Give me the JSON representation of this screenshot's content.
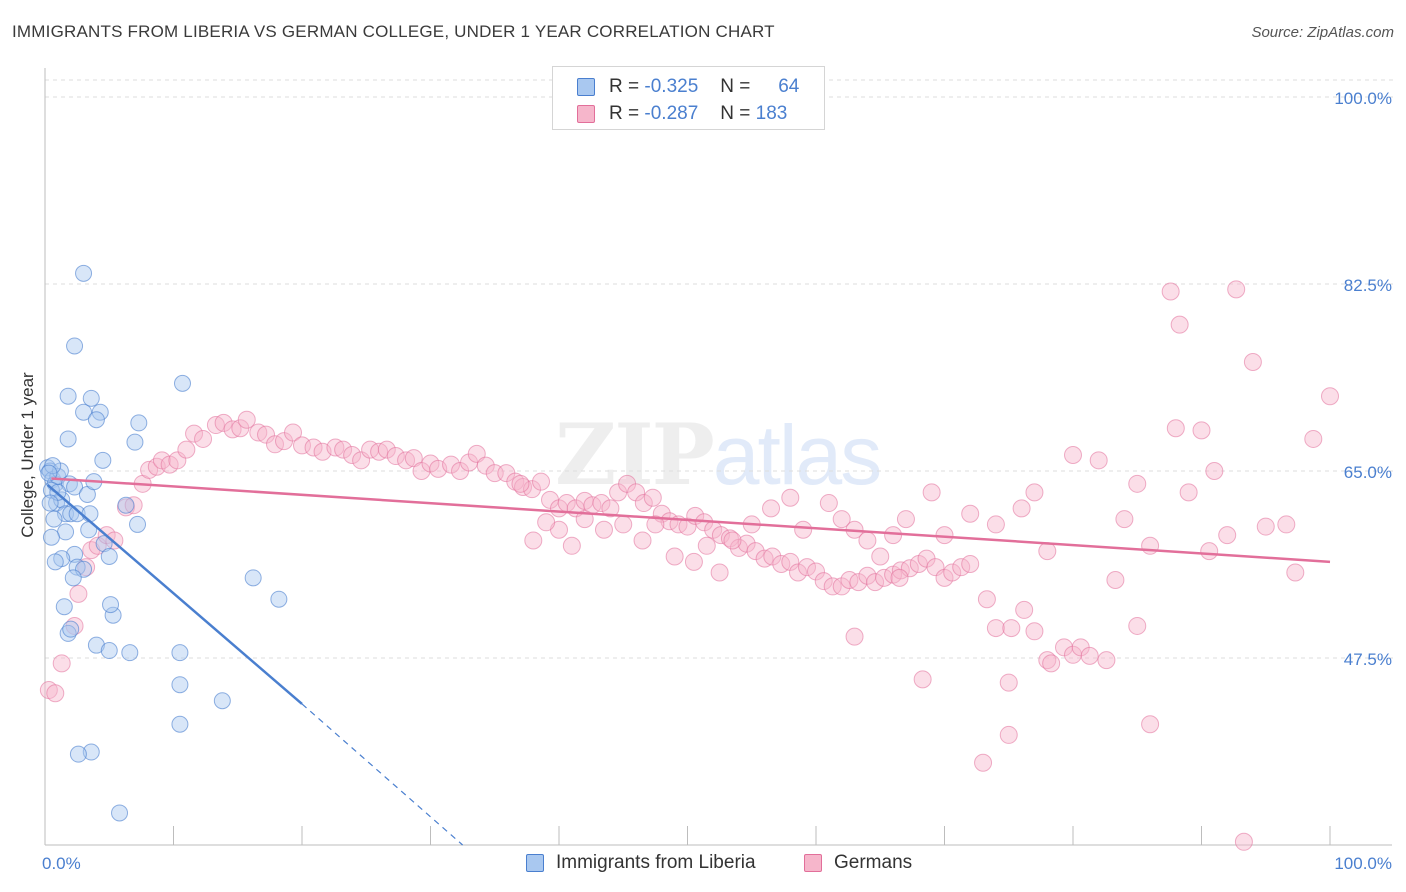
{
  "title": "IMMIGRANTS FROM LIBERIA VS GERMAN COLLEGE, UNDER 1 YEAR CORRELATION CHART",
  "source": "Source: ZipAtlas.com",
  "watermark": {
    "zip": "ZIP",
    "atlas": "atlas"
  },
  "colors": {
    "blue": "#4a7fcf",
    "blue_fill": "#a9c8f0",
    "pink": "#e26f9a",
    "pink_fill": "#f6b6cb",
    "grid": "#dddddd",
    "axis_text": "#4a7fcf"
  },
  "legend": {
    "series1": {
      "r_label": "R =",
      "r_value": "-0.325",
      "n_label": "N =",
      "n_value": "64",
      "name": "Immigrants from Liberia"
    },
    "series2": {
      "r_label": "R =",
      "r_value": "-0.287",
      "n_label": "N =",
      "n_value": "183",
      "name": "Germans"
    }
  },
  "chart_data": {
    "type": "scatter",
    "title": "IMMIGRANTS FROM LIBERIA VS GERMAN COLLEGE, UNDER 1 YEAR CORRELATION CHART",
    "xlabel": "",
    "ylabel": "College, Under 1 year",
    "xlim": [
      0,
      100
    ],
    "ylim": [
      30,
      101
    ],
    "x_tick_labels": [
      "0.0%",
      "100.0%"
    ],
    "y_ticks": [
      47.5,
      65.0,
      82.5,
      100.0
    ],
    "y_tick_labels": [
      "47.5%",
      "65.0%",
      "82.5%",
      "100.0%"
    ],
    "grid": true,
    "series": [
      {
        "name": "Immigrants from Liberia",
        "color": "#4a7fcf",
        "trend": {
          "x0": 0.2,
          "y0": 63.7,
          "x1": 20,
          "y1": 43.2,
          "dash_to_x": 32.5,
          "dash_to_y": 30.0
        },
        "points": [
          [
            0.2,
            65.3
          ],
          [
            0.4,
            65.0
          ],
          [
            0.6,
            64.2
          ],
          [
            0.8,
            63.8
          ],
          [
            1.0,
            64.5
          ],
          [
            0.5,
            63.2
          ],
          [
            0.9,
            62.0
          ],
          [
            1.3,
            62.3
          ],
          [
            1.6,
            61.0
          ],
          [
            0.7,
            60.5
          ],
          [
            1.6,
            59.3
          ],
          [
            0.5,
            58.8
          ],
          [
            1.9,
            63.8
          ],
          [
            1.2,
            65.0
          ],
          [
            2.0,
            61.0
          ],
          [
            2.5,
            61.0
          ],
          [
            2.3,
            63.5
          ],
          [
            3.3,
            62.8
          ],
          [
            3.5,
            61.0
          ],
          [
            3.4,
            59.5
          ],
          [
            2.3,
            57.2
          ],
          [
            1.3,
            56.8
          ],
          [
            2.5,
            56.0
          ],
          [
            3.0,
            55.8
          ],
          [
            2.2,
            55.0
          ],
          [
            0.8,
            56.5
          ],
          [
            4.6,
            58.2
          ],
          [
            5.0,
            57.0
          ],
          [
            1.5,
            52.3
          ],
          [
            5.3,
            51.5
          ],
          [
            1.8,
            49.8
          ],
          [
            4.0,
            48.7
          ],
          [
            5.0,
            48.2
          ],
          [
            6.6,
            48.0
          ],
          [
            5.1,
            52.5
          ],
          [
            2.0,
            50.2
          ],
          [
            7.2,
            60.0
          ],
          [
            6.3,
            61.8
          ],
          [
            7.3,
            69.5
          ],
          [
            7.0,
            67.7
          ],
          [
            4.5,
            66.0
          ],
          [
            3.0,
            70.5
          ],
          [
            4.3,
            70.5
          ],
          [
            4.0,
            69.8
          ],
          [
            3.6,
            71.8
          ],
          [
            1.8,
            68.0
          ],
          [
            1.8,
            72.0
          ],
          [
            2.3,
            76.7
          ],
          [
            3.0,
            83.5
          ],
          [
            10.7,
            73.2
          ],
          [
            16.2,
            55.0
          ],
          [
            18.2,
            53.0
          ],
          [
            10.5,
            48.0
          ],
          [
            10.5,
            45.0
          ],
          [
            13.8,
            43.5
          ],
          [
            10.5,
            41.3
          ],
          [
            3.6,
            38.7
          ],
          [
            2.6,
            38.5
          ],
          [
            5.8,
            33.0
          ],
          [
            0.6,
            65.5
          ],
          [
            1.0,
            63.0
          ],
          [
            0.4,
            62.0
          ],
          [
            3.8,
            64.0
          ],
          [
            0.3,
            64.8
          ]
        ]
      },
      {
        "name": "Germans",
        "color": "#e26f9a",
        "trend": {
          "x0": 0.5,
          "y0": 64.3,
          "x1": 100,
          "y1": 56.5
        },
        "points": [
          [
            0.3,
            44.5
          ],
          [
            0.8,
            44.2
          ],
          [
            1.3,
            47.0
          ],
          [
            2.3,
            50.5
          ],
          [
            2.6,
            53.5
          ],
          [
            3.2,
            56.0
          ],
          [
            3.6,
            57.6
          ],
          [
            4.1,
            58.0
          ],
          [
            4.8,
            59.0
          ],
          [
            5.4,
            58.5
          ],
          [
            6.3,
            61.6
          ],
          [
            6.9,
            61.8
          ],
          [
            7.6,
            63.8
          ],
          [
            8.1,
            65.1
          ],
          [
            8.7,
            65.4
          ],
          [
            9.1,
            66.0
          ],
          [
            9.7,
            65.6
          ],
          [
            10.3,
            66.0
          ],
          [
            11.0,
            67.0
          ],
          [
            11.6,
            68.5
          ],
          [
            12.3,
            68.0
          ],
          [
            13.3,
            69.3
          ],
          [
            13.9,
            69.5
          ],
          [
            14.6,
            68.9
          ],
          [
            15.2,
            69.0
          ],
          [
            15.7,
            69.8
          ],
          [
            16.6,
            68.6
          ],
          [
            17.2,
            68.4
          ],
          [
            17.9,
            67.5
          ],
          [
            18.6,
            67.8
          ],
          [
            19.3,
            68.6
          ],
          [
            20.0,
            67.4
          ],
          [
            20.9,
            67.2
          ],
          [
            21.6,
            66.8
          ],
          [
            22.6,
            67.2
          ],
          [
            23.2,
            67.0
          ],
          [
            23.9,
            66.5
          ],
          [
            24.6,
            66.0
          ],
          [
            25.3,
            67.0
          ],
          [
            26.0,
            66.8
          ],
          [
            26.6,
            67.0
          ],
          [
            27.3,
            66.4
          ],
          [
            28.1,
            66.0
          ],
          [
            28.7,
            66.2
          ],
          [
            29.3,
            65.0
          ],
          [
            30.0,
            65.7
          ],
          [
            30.6,
            65.2
          ],
          [
            31.6,
            65.6
          ],
          [
            32.3,
            65.0
          ],
          [
            33.0,
            65.8
          ],
          [
            33.6,
            66.6
          ],
          [
            34.3,
            65.5
          ],
          [
            35.0,
            64.8
          ],
          [
            35.9,
            64.8
          ],
          [
            36.6,
            64.0
          ],
          [
            37.2,
            63.5
          ],
          [
            37.9,
            63.3
          ],
          [
            38.6,
            64.0
          ],
          [
            39.3,
            62.3
          ],
          [
            40.0,
            61.5
          ],
          [
            40.6,
            62.0
          ],
          [
            41.3,
            61.5
          ],
          [
            42.0,
            62.2
          ],
          [
            42.6,
            61.8
          ],
          [
            43.3,
            62.0
          ],
          [
            44.0,
            61.5
          ],
          [
            44.6,
            63.0
          ],
          [
            45.3,
            63.8
          ],
          [
            46.0,
            63.0
          ],
          [
            46.6,
            62.0
          ],
          [
            47.3,
            62.5
          ],
          [
            48.0,
            61.0
          ],
          [
            48.6,
            60.3
          ],
          [
            49.3,
            60.0
          ],
          [
            50.0,
            59.8
          ],
          [
            50.6,
            60.8
          ],
          [
            51.3,
            60.2
          ],
          [
            52.0,
            59.5
          ],
          [
            52.6,
            59.0
          ],
          [
            53.3,
            58.7
          ],
          [
            54.0,
            57.8
          ],
          [
            54.6,
            58.2
          ],
          [
            55.3,
            57.5
          ],
          [
            56.0,
            56.8
          ],
          [
            56.6,
            57.0
          ],
          [
            57.3,
            56.3
          ],
          [
            58.0,
            56.5
          ],
          [
            58.6,
            55.5
          ],
          [
            59.3,
            56.0
          ],
          [
            60.0,
            55.6
          ],
          [
            60.6,
            54.7
          ],
          [
            61.3,
            54.2
          ],
          [
            62.0,
            54.2
          ],
          [
            62.6,
            54.8
          ],
          [
            63.3,
            54.6
          ],
          [
            64.0,
            55.2
          ],
          [
            64.6,
            54.6
          ],
          [
            65.3,
            55.0
          ],
          [
            66.0,
            55.3
          ],
          [
            66.6,
            55.7
          ],
          [
            67.3,
            55.9
          ],
          [
            68.0,
            56.3
          ],
          [
            68.6,
            56.8
          ],
          [
            69.3,
            56.0
          ],
          [
            70.0,
            55.0
          ],
          [
            70.6,
            55.5
          ],
          [
            71.3,
            56.0
          ],
          [
            72.0,
            56.3
          ],
          [
            73.3,
            53.0
          ],
          [
            74.0,
            50.3
          ],
          [
            75.2,
            50.3
          ],
          [
            76.2,
            52.0
          ],
          [
            77.0,
            50.0
          ],
          [
            78.0,
            47.3
          ],
          [
            79.3,
            48.5
          ],
          [
            80.0,
            47.8
          ],
          [
            80.6,
            48.5
          ],
          [
            81.3,
            47.7
          ],
          [
            82.6,
            47.3
          ],
          [
            83.3,
            54.8
          ],
          [
            85.0,
            50.5
          ],
          [
            86.0,
            41.3
          ],
          [
            87.6,
            81.8
          ],
          [
            88.3,
            78.7
          ],
          [
            90.6,
            57.5
          ],
          [
            92.0,
            59.0
          ],
          [
            92.7,
            82.0
          ],
          [
            93.3,
            30.3
          ],
          [
            94.0,
            75.2
          ],
          [
            95.0,
            59.8
          ],
          [
            96.6,
            60.0
          ],
          [
            97.3,
            55.5
          ],
          [
            98.7,
            68.0
          ],
          [
            100.0,
            72.0
          ],
          [
            73.0,
            37.7
          ],
          [
            75.0,
            40.3
          ],
          [
            68.3,
            45.5
          ],
          [
            75.0,
            45.2
          ],
          [
            78.3,
            47.0
          ],
          [
            63.0,
            49.5
          ],
          [
            66.0,
            59.0
          ],
          [
            67.0,
            60.5
          ],
          [
            69.0,
            63.0
          ],
          [
            70.0,
            59.0
          ],
          [
            72.0,
            61.0
          ],
          [
            74.0,
            60.0
          ],
          [
            76.0,
            61.5
          ],
          [
            77.0,
            63.0
          ],
          [
            78.0,
            57.5
          ],
          [
            80.0,
            66.5
          ],
          [
            82.0,
            66.0
          ],
          [
            84.0,
            60.5
          ],
          [
            85.0,
            63.8
          ],
          [
            86.0,
            58.0
          ],
          [
            88.0,
            69.0
          ],
          [
            89.0,
            63.0
          ],
          [
            90.0,
            68.8
          ],
          [
            91.0,
            65.0
          ],
          [
            61.0,
            62.0
          ],
          [
            62.0,
            60.5
          ],
          [
            63.0,
            59.5
          ],
          [
            64.0,
            58.5
          ],
          [
            65.0,
            57.0
          ],
          [
            66.5,
            55.0
          ],
          [
            58.0,
            62.5
          ],
          [
            59.0,
            59.5
          ],
          [
            56.5,
            61.5
          ],
          [
            55.0,
            60.0
          ],
          [
            53.5,
            58.5
          ],
          [
            52.5,
            55.5
          ],
          [
            51.5,
            58.0
          ],
          [
            50.5,
            56.5
          ],
          [
            49.0,
            57.0
          ],
          [
            47.5,
            60.0
          ],
          [
            46.5,
            58.5
          ],
          [
            45.0,
            60.0
          ],
          [
            43.5,
            59.5
          ],
          [
            42.0,
            60.5
          ],
          [
            41.0,
            58.0
          ],
          [
            40.0,
            59.5
          ],
          [
            39.0,
            60.2
          ],
          [
            38.0,
            58.5
          ],
          [
            37.0,
            63.8
          ]
        ]
      }
    ]
  }
}
